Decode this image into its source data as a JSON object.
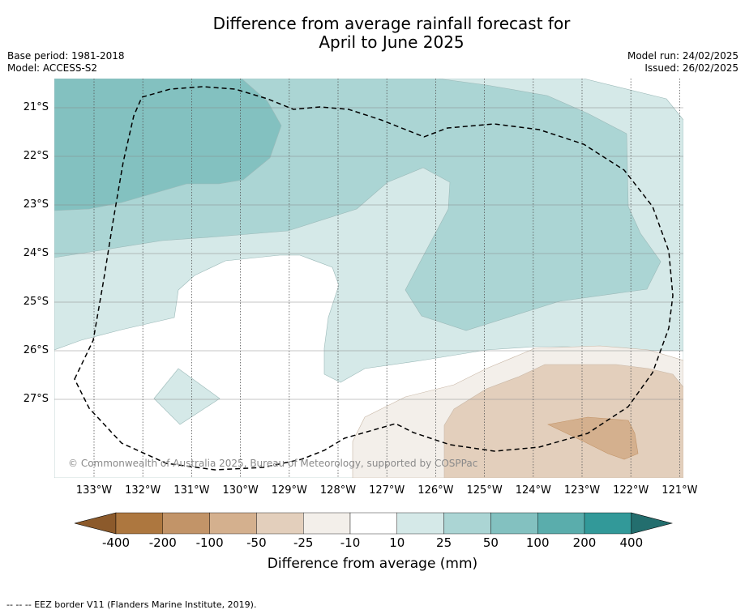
{
  "title": {
    "line1": "Difference from average rainfall forecast for",
    "line2": "April to June 2025"
  },
  "meta": {
    "base_period": "Base period: 1981-2018",
    "model": "Model: ACCESS-S2",
    "model_run": "Model run: 24/02/2025",
    "issued": "Issued: 26/02/2025"
  },
  "map": {
    "lat_labels": [
      "21°S",
      "22°S",
      "23°S",
      "24°S",
      "25°S",
      "26°S",
      "27°S"
    ],
    "lon_labels": [
      "133°W",
      "132°W",
      "131°W",
      "130°W",
      "129°W",
      "128°W",
      "127°W",
      "126°W",
      "125°W",
      "124°W",
      "123°W",
      "122°W",
      "121°W"
    ],
    "copyright": "© Commonwealth of Australia 2025, Bureau of Meteorology, supported by COSPPac"
  },
  "colorbar": {
    "ticks": [
      "-400",
      "-200",
      "-100",
      "-50",
      "-25",
      "-10",
      "10",
      "25",
      "50",
      "100",
      "200",
      "400"
    ],
    "colors": [
      "#8c5a2b",
      "#ad773f",
      "#c29468",
      "#d4b08e",
      "#e3cfbc",
      "#f3efea",
      "#ffffff",
      "#d5e9e8",
      "#abd5d4",
      "#83c1c0",
      "#5aadac",
      "#329999",
      "#236e6e"
    ],
    "title": "Difference from average (mm)"
  },
  "footer": "-- -- -- EEZ border V11 (Flanders Marine Institute, 2019)."
}
